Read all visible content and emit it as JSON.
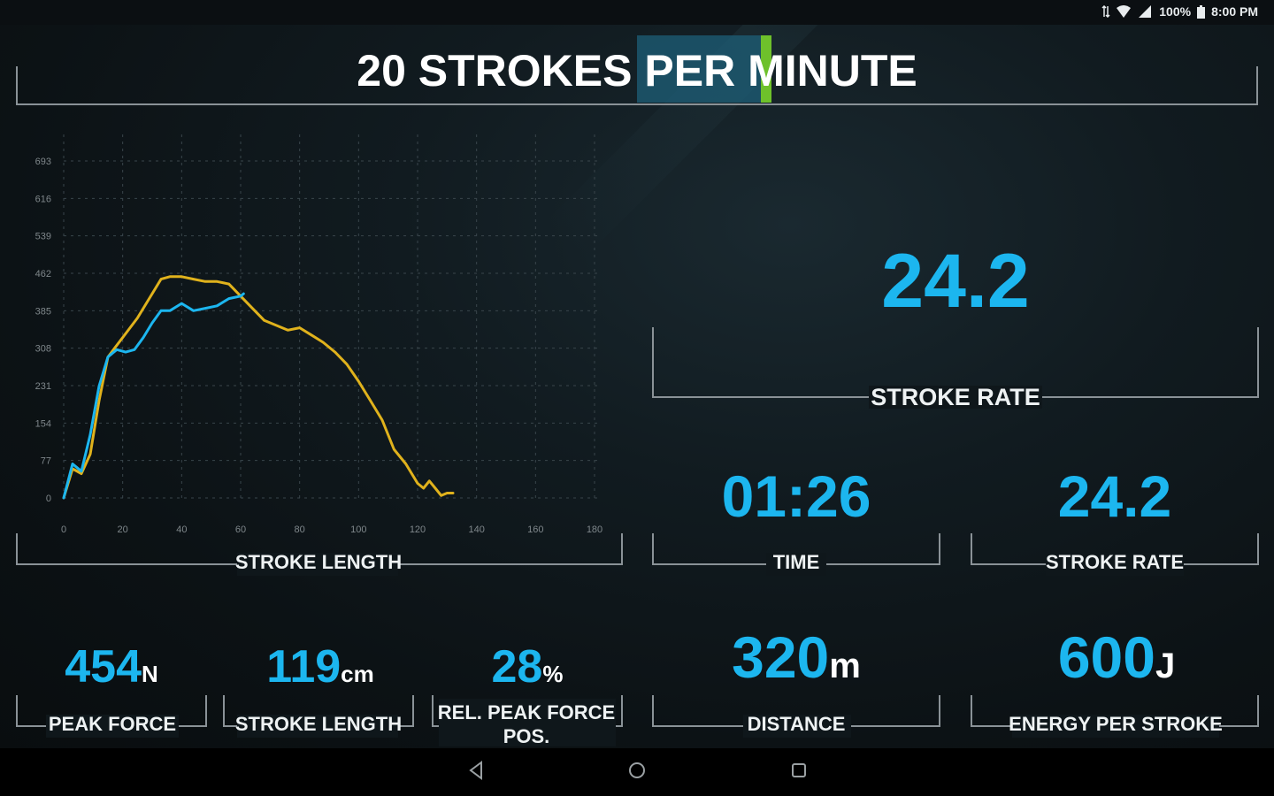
{
  "status_bar": {
    "battery": "100%",
    "time": "8:00 PM",
    "icons": [
      "data-arrows-icon",
      "wifi-icon",
      "signal-icon",
      "battery-icon"
    ]
  },
  "title": {
    "text": "20 STROKES PER MINUTE",
    "part1": "20 STROKES P",
    "part2": "ER MINUTE"
  },
  "chart_data": {
    "type": "line",
    "xlabel": "STROKE LENGTH",
    "xlim": [
      0,
      180
    ],
    "ylim": [
      0,
      693
    ],
    "x_ticks": [
      "0",
      "20",
      "40",
      "60",
      "80",
      "100",
      "120",
      "140",
      "160",
      "180"
    ],
    "y_ticks": [
      "0",
      "77",
      "154",
      "231",
      "308",
      "385",
      "462",
      "539",
      "616",
      "693"
    ],
    "series": [
      {
        "color": "#e0b21c",
        "x": [
          0,
          3,
          6,
          9,
          12,
          15,
          20,
          25,
          30,
          33,
          36,
          40,
          44,
          48,
          52,
          56,
          60,
          64,
          68,
          72,
          76,
          80,
          84,
          88,
          92,
          96,
          100,
          104,
          108,
          112,
          116,
          120,
          122,
          124,
          126,
          128,
          130,
          132
        ],
        "y": [
          0,
          60,
          50,
          90,
          200,
          290,
          330,
          370,
          420,
          450,
          455,
          455,
          450,
          445,
          445,
          440,
          415,
          390,
          365,
          355,
          345,
          350,
          335,
          320,
          300,
          275,
          240,
          200,
          160,
          100,
          70,
          30,
          20,
          35,
          20,
          5,
          10,
          10
        ]
      },
      {
        "color": "#1cb6ef",
        "x": [
          0,
          3,
          6,
          9,
          12,
          15,
          18,
          21,
          24,
          27,
          30,
          33,
          36,
          40,
          44,
          48,
          52,
          56,
          60,
          61
        ],
        "y": [
          0,
          70,
          55,
          130,
          230,
          290,
          305,
          300,
          305,
          330,
          360,
          385,
          385,
          400,
          385,
          390,
          395,
          410,
          415,
          420
        ]
      }
    ]
  },
  "panels": {
    "chart_label": "STROKE LENGTH",
    "hero": {
      "value": "24.2",
      "label": "STROKE RATE"
    },
    "time": {
      "value": "01:26",
      "label": "TIME"
    },
    "stroke_rate": {
      "value": "24.2",
      "label": "STROKE RATE"
    },
    "distance": {
      "value": "320",
      "unit": "m",
      "label": "DISTANCE"
    },
    "energy": {
      "value": "600",
      "unit": "J",
      "label": "ENERGY PER STROKE"
    },
    "peak_force": {
      "value": "454",
      "unit": "N",
      "label": "PEAK FORCE"
    },
    "stroke_length": {
      "value": "119",
      "unit": "cm",
      "label": "STROKE LENGTH"
    },
    "rel_peak": {
      "value": "28",
      "unit": "%",
      "label_line1": "REL. PEAK FORCE",
      "label_line2": "POS."
    }
  },
  "colors": {
    "accent": "#1cb6ef",
    "series_yellow": "#e0b21c",
    "highlight": "#1d5f78",
    "cursor": "#6ec12b"
  }
}
